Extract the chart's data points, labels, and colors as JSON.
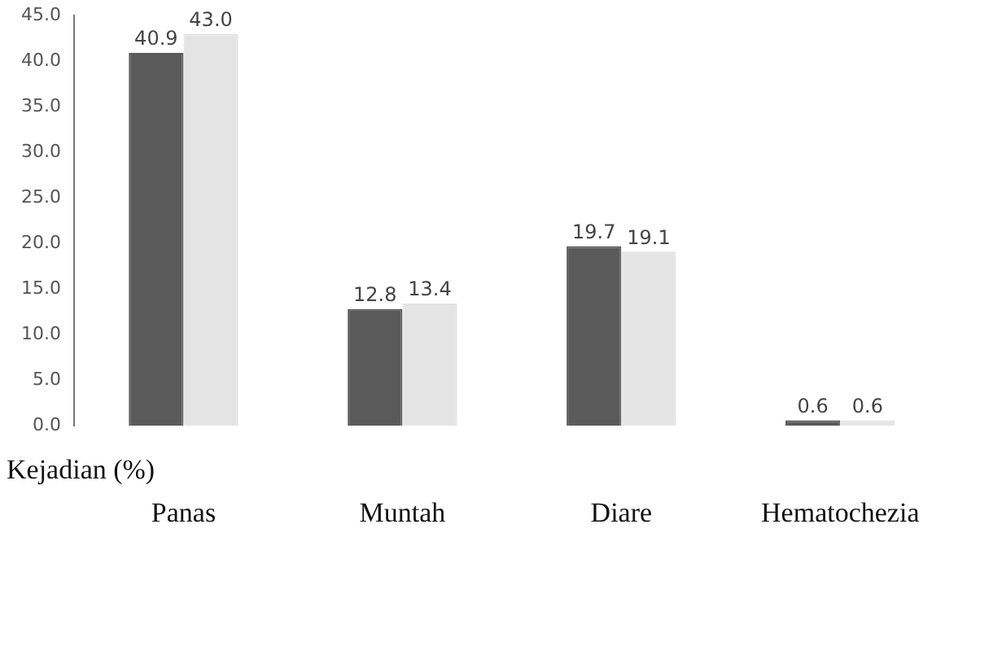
{
  "chart_data": {
    "type": "bar",
    "ylabel": "Kejadian (%)",
    "categories": [
      "Panas",
      "Muntah",
      "Diare",
      "Hematochezia"
    ],
    "series": [
      {
        "color": "#5a5a5a",
        "values": [
          40.9,
          12.8,
          19.7,
          0.6
        ],
        "value_labels": [
          "40.9",
          "12.8",
          "19.7",
          "0.6"
        ]
      },
      {
        "color": "#e4e4e4",
        "values": [
          43.0,
          13.4,
          19.1,
          0.6
        ],
        "value_labels": [
          "43.0",
          "13.4",
          "19.1",
          "0.6"
        ]
      }
    ],
    "ylim": [
      0,
      45
    ],
    "yticks": [
      {
        "value": 0,
        "label": "0.0"
      },
      {
        "value": 5,
        "label": "5.0"
      },
      {
        "value": 10,
        "label": "10.0"
      },
      {
        "value": 15,
        "label": "15.0"
      },
      {
        "value": 20,
        "label": "20.0"
      },
      {
        "value": 25,
        "label": "25.0"
      },
      {
        "value": 30,
        "label": "30.0"
      },
      {
        "value": 35,
        "label": "35.0"
      },
      {
        "value": 40,
        "label": "40.0"
      },
      {
        "value": 45,
        "label": "45.0"
      }
    ],
    "grid": false,
    "legend": false
  }
}
